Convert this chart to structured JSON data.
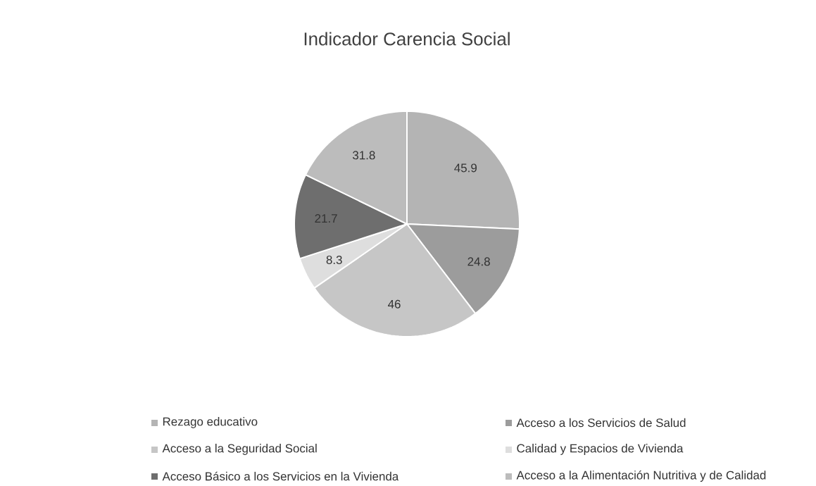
{
  "chart_data": {
    "type": "pie",
    "title": "Indicador Carencia Social",
    "categories": [
      "Rezago educativo",
      "Acceso a los Servicios de Salud",
      "Acceso a la Seguridad Social",
      "Calidad y Espacios de Vivienda",
      "Acceso Básico a los Servicios en la Vivienda",
      "Acceso a la Alimentación Nutritiva y de Calidad"
    ],
    "values": [
      45.9,
      24.8,
      46,
      8.3,
      21.7,
      31.8
    ],
    "colors": [
      "#b4b4b4",
      "#9c9c9c",
      "#c6c6c6",
      "#dedede",
      "#6e6e6e",
      "#bcbcbc"
    ],
    "value_labels": [
      "45.9",
      "24.8",
      "46",
      "8.3",
      "21.7",
      "31.8"
    ],
    "legend": "bottom"
  }
}
